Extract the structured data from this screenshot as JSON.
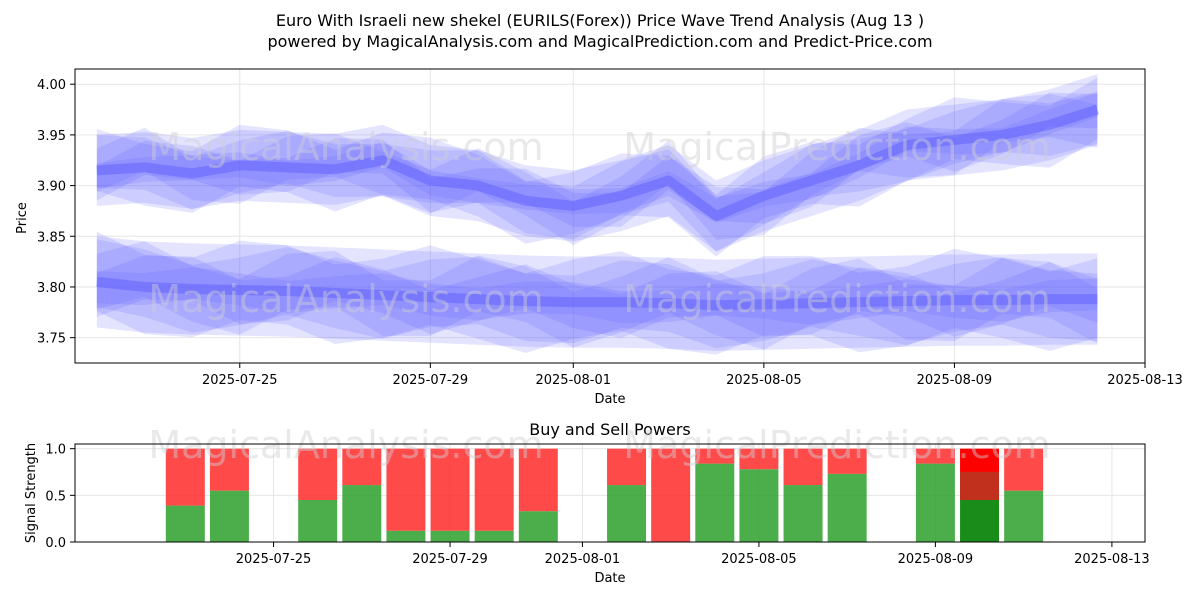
{
  "colors": {
    "price_band": "#5a5aff",
    "buy": "#2ca02c",
    "sell": "#ff2a2a",
    "grid": "#e6e6e6",
    "watermark": "#c8c8d0"
  },
  "watermarks": [
    "MagicalAnalysis.com",
    "MagicalPrediction.com"
  ],
  "chart_data": [
    {
      "type": "area",
      "title": "Euro With Israeli new shekel (EURILS(Forex)) Price Wave Trend Analysis (Aug 13 )",
      "subtitle": "powered by MagicalAnalysis.com and MagicalPrediction.com and Predict-Price.com",
      "xlabel": "Date",
      "ylabel": "Price",
      "xlim": [
        "2025-07-21T13:00",
        "2025-08-13"
      ],
      "ylim": [
        3.725,
        4.015
      ],
      "x_ticks": [
        "2025-07-25",
        "2025-07-29",
        "2025-08-01",
        "2025-08-05",
        "2025-08-09",
        "2025-08-13"
      ],
      "y_ticks": [
        3.75,
        3.8,
        3.85,
        3.9,
        3.95,
        4.0
      ],
      "y_tick_labels": [
        "3.75",
        "3.80",
        "3.85",
        "3.90",
        "3.95",
        "4.00"
      ],
      "grid": true,
      "x": [
        "2025-07-22",
        "2025-07-23",
        "2025-07-24",
        "2025-07-25",
        "2025-07-26",
        "2025-07-27",
        "2025-07-28",
        "2025-07-29",
        "2025-07-30",
        "2025-07-31",
        "2025-08-01",
        "2025-08-02",
        "2025-08-03",
        "2025-08-04",
        "2025-08-05",
        "2025-08-06",
        "2025-08-07",
        "2025-08-08",
        "2025-08-09",
        "2025-08-10",
        "2025-08-11",
        "2025-08-12"
      ],
      "series": [
        {
          "name": "upper wave bands",
          "values": [
            3.915,
            3.918,
            3.912,
            3.92,
            3.918,
            3.916,
            3.925,
            3.905,
            3.9,
            3.885,
            3.88,
            3.89,
            3.905,
            3.87,
            3.89,
            3.905,
            3.92,
            3.94,
            3.945,
            3.95,
            3.96,
            3.975
          ],
          "spread": [
            0.035,
            0.035,
            0.035,
            0.035,
            0.035,
            0.035,
            0.035,
            0.035,
            0.035,
            0.035,
            0.035,
            0.035,
            0.035,
            0.035,
            0.035,
            0.035,
            0.035,
            0.035,
            0.035,
            0.035,
            0.035,
            0.035
          ]
        },
        {
          "name": "lower wave bands",
          "values": [
            3.805,
            3.8,
            3.798,
            3.797,
            3.796,
            3.794,
            3.792,
            3.79,
            3.788,
            3.786,
            3.785,
            3.785,
            3.784,
            3.782,
            3.783,
            3.784,
            3.785,
            3.786,
            3.787,
            3.787,
            3.788,
            3.788
          ],
          "spread": [
            0.045,
            0.045,
            0.045,
            0.045,
            0.045,
            0.045,
            0.045,
            0.045,
            0.045,
            0.045,
            0.045,
            0.045,
            0.045,
            0.045,
            0.045,
            0.045,
            0.045,
            0.045,
            0.045,
            0.045,
            0.045,
            0.045
          ]
        }
      ]
    },
    {
      "type": "bar",
      "title": "Buy and Sell Powers",
      "xlabel": "Date",
      "ylabel": "Signal Strength",
      "ylim": [
        0,
        1.05
      ],
      "y_ticks": [
        0,
        0.5,
        1
      ],
      "y_tick_labels": [
        "0.0",
        "0.5",
        "1.0"
      ],
      "x_ticks": [
        "2025-07-25",
        "2025-07-29",
        "2025-08-01",
        "2025-08-05",
        "2025-08-09",
        "2025-08-13"
      ],
      "grid": true,
      "categories": [
        "2025-07-23",
        "2025-07-24",
        "2025-07-26",
        "2025-07-27",
        "2025-07-28",
        "2025-07-29",
        "2025-07-30",
        "2025-07-31",
        "2025-08-02",
        "2025-08-03",
        "2025-08-04",
        "2025-08-05",
        "2025-08-06",
        "2025-08-07",
        "2025-08-09",
        "2025-08-10",
        "2025-08-11"
      ],
      "series": [
        {
          "name": "Buy",
          "values": [
            0.39,
            0.55,
            0.45,
            0.61,
            0.12,
            0.12,
            0.12,
            0.33,
            0.61,
            0.0,
            0.84,
            0.78,
            0.61,
            0.73,
            0.84,
            0.45,
            0.55
          ]
        },
        {
          "name": "Sell",
          "values": [
            0.61,
            0.45,
            0.55,
            0.39,
            0.88,
            0.88,
            0.88,
            0.67,
            0.39,
            1.0,
            0.16,
            0.22,
            0.39,
            0.27,
            0.16,
            0.55,
            0.45
          ]
        }
      ],
      "highlighted_category": "2025-08-10"
    }
  ]
}
